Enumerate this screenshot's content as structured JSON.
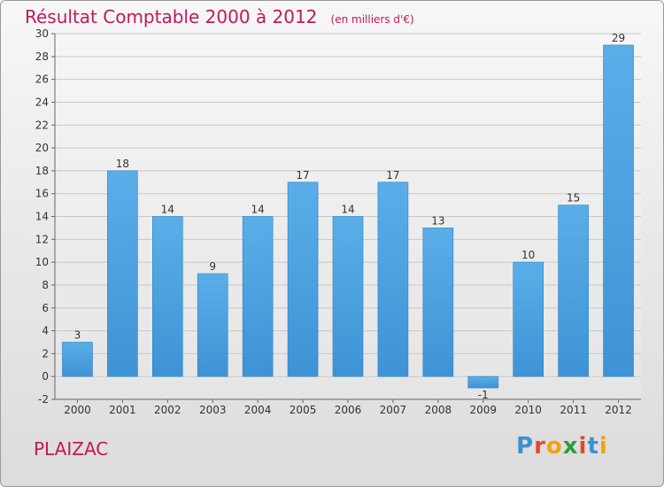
{
  "header": {
    "title": "Résultat Comptable 2000 à 2012",
    "subtitle": "(en milliers d'€)"
  },
  "commune": "PLAIZAC",
  "logo": {
    "letters": [
      "P",
      "r",
      "o",
      "x",
      "i",
      "t",
      "i"
    ],
    "colors": [
      "#3f8fd0",
      "#e24b2a",
      "#f4a10b",
      "#2d9e3f",
      "#e24b2a",
      "#3f8fd0",
      "#f4a10b"
    ]
  },
  "colors": {
    "bar": "#3e93d6",
    "bar_light": "#5aaee8",
    "title": "#c2185b",
    "grid": "#c8c8c8"
  },
  "chart_data": {
    "type": "bar",
    "title": "Résultat Comptable 2000 à 2012",
    "subtitle": "(en milliers d'€)",
    "categories": [
      "2000",
      "2001",
      "2002",
      "2003",
      "2004",
      "2005",
      "2006",
      "2007",
      "2008",
      "2009",
      "2010",
      "2011",
      "2012"
    ],
    "values": [
      3,
      18,
      14,
      9,
      14,
      17,
      14,
      17,
      13,
      -1,
      10,
      15,
      29
    ],
    "data_labels": [
      "3",
      "18",
      "14",
      "9",
      "14",
      "17",
      "14",
      "17",
      "13",
      "-1",
      "10",
      "15",
      "29"
    ],
    "y_ticks": [
      "-2",
      "0",
      "2",
      "4",
      "6",
      "8",
      "10",
      "12",
      "14",
      "16",
      "18",
      "20",
      "22",
      "24",
      "26",
      "28",
      "30"
    ],
    "ylim": [
      -2,
      30
    ],
    "grid": true,
    "legend": "none"
  }
}
